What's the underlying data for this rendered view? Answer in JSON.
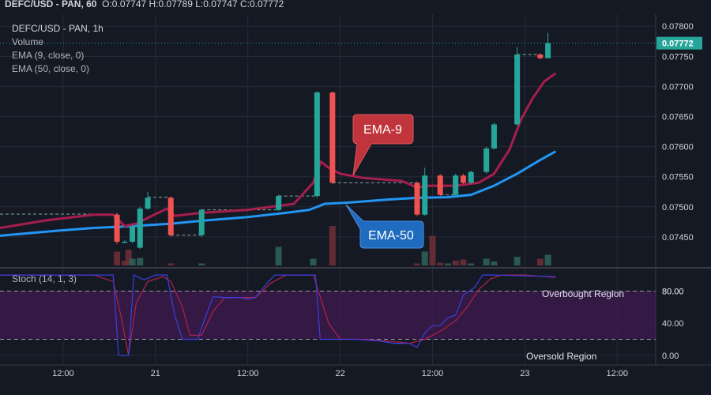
{
  "header": {
    "symbol_line": "DEFC/USD - PAN, 60",
    "ohlc": "O:0.07747 H:0.07789 L:0.07747 C:0.07772"
  },
  "legend": {
    "symbol": "DEFC/USD - PAN, 1h",
    "volume": "Volume",
    "ema9": "EMA (9, close, 0)",
    "ema50": "EMA (50, close, 0)",
    "stoch": "Stoch (14, 1, 3)"
  },
  "annotations": {
    "ema9_label": "EMA-9",
    "ema50_label": "EMA-50",
    "overbought": "Overbought Region",
    "oversold": "Oversold Region"
  },
  "colors": {
    "background": "#151924",
    "up": "#26a69a",
    "down": "#ef5350",
    "ema9": "#a61e4d",
    "ema50": "#2196f3",
    "stoch_k": "#3a3fe0",
    "stoch_d": "#b0214b",
    "band_fill": "#3a1a4a",
    "price_tag": "#26a69a"
  },
  "chart_data": {
    "type": "candlestick",
    "price_axis": {
      "ticks": [
        0.0745,
        0.075,
        0.0755,
        0.076,
        0.0765,
        0.077,
        0.0775,
        0.078
      ],
      "tick_labels": [
        "0.07450",
        "0.07500",
        "0.07550",
        "0.07600",
        "0.07650",
        "0.07700",
        "0.07750",
        "0.07800"
      ],
      "range": [
        0.074,
        0.0782
      ],
      "last_price": 0.07772,
      "last_price_label": "0.07772"
    },
    "time_axis": {
      "labels": [
        {
          "hour": 6,
          "text": "12:00"
        },
        {
          "hour": 18,
          "text": "21"
        },
        {
          "hour": 30,
          "text": "12:00"
        },
        {
          "hour": 42,
          "text": "22"
        },
        {
          "hour": 54,
          "text": "12:00"
        },
        {
          "hour": 66,
          "text": "23"
        },
        {
          "hour": 78,
          "text": "12:00"
        }
      ],
      "range": [
        -2.2,
        83
      ]
    },
    "candles": [
      {
        "h": 13,
        "o": 0.07487,
        "c": 0.07442,
        "hi": 0.0749,
        "lo": 0.07438
      },
      {
        "h": 14,
        "o": 0.07442,
        "c": 0.07442,
        "hi": 0.07445,
        "lo": 0.0744
      },
      {
        "h": 15,
        "o": 0.07442,
        "c": 0.07468,
        "hi": 0.0747,
        "lo": 0.0744
      },
      {
        "h": 16,
        "o": 0.07432,
        "c": 0.07497,
        "hi": 0.075,
        "lo": 0.0743
      },
      {
        "h": 17,
        "o": 0.07497,
        "c": 0.07515,
        "hi": 0.07525,
        "lo": 0.07495
      },
      {
        "h": 20,
        "o": 0.07515,
        "c": 0.07453,
        "hi": 0.07517,
        "lo": 0.0745
      },
      {
        "h": 24,
        "o": 0.07453,
        "c": 0.07495,
        "hi": 0.07497,
        "lo": 0.0745
      },
      {
        "h": 34,
        "o": 0.07495,
        "c": 0.07518,
        "hi": 0.0752,
        "lo": 0.07493
      },
      {
        "h": 39,
        "o": 0.07518,
        "c": 0.0769,
        "hi": 0.07692,
        "lo": 0.07515
      },
      {
        "h": 41,
        "o": 0.0769,
        "c": 0.0754,
        "hi": 0.07692,
        "lo": 0.07538
      },
      {
        "h": 52,
        "o": 0.0754,
        "c": 0.07487,
        "hi": 0.07542,
        "lo": 0.07485
      },
      {
        "h": 53,
        "o": 0.07487,
        "c": 0.07552,
        "hi": 0.07565,
        "lo": 0.07485
      },
      {
        "h": 55,
        "o": 0.07552,
        "c": 0.0752,
        "hi": 0.07555,
        "lo": 0.07518
      },
      {
        "h": 57,
        "o": 0.0752,
        "c": 0.07552,
        "hi": 0.07555,
        "lo": 0.07518
      },
      {
        "h": 58,
        "o": 0.07552,
        "c": 0.0754,
        "hi": 0.07555,
        "lo": 0.07538
      },
      {
        "h": 59,
        "o": 0.0754,
        "c": 0.07558,
        "hi": 0.0756,
        "lo": 0.07538
      },
      {
        "h": 61,
        "o": 0.07558,
        "c": 0.07597,
        "hi": 0.076,
        "lo": 0.07555
      },
      {
        "h": 62,
        "o": 0.07597,
        "c": 0.07637,
        "hi": 0.0764,
        "lo": 0.07595
      },
      {
        "h": 65,
        "o": 0.07637,
        "c": 0.07753,
        "hi": 0.07765,
        "lo": 0.07635
      },
      {
        "h": 68,
        "o": 0.07753,
        "c": 0.07747,
        "hi": 0.07755,
        "lo": 0.07745
      },
      {
        "h": 69,
        "o": 0.07747,
        "c": 0.07772,
        "hi": 0.07789,
        "lo": 0.07747
      }
    ],
    "flat_segments": [
      {
        "from": -2.2,
        "to": 13,
        "price": 0.07488
      },
      {
        "from": 17,
        "to": 20,
        "price": 0.07516
      },
      {
        "from": 20,
        "to": 24,
        "price": 0.07453
      },
      {
        "from": 24,
        "to": 34,
        "price": 0.07495
      },
      {
        "from": 34,
        "to": 39,
        "price": 0.07518
      },
      {
        "from": 41,
        "to": 52,
        "price": 0.0754
      },
      {
        "from": 55,
        "to": 57,
        "price": 0.0752
      },
      {
        "from": 65,
        "to": 68,
        "price": 0.07753
      }
    ],
    "ema9": [
      [
        -2.2,
        0.07465
      ],
      [
        4,
        0.07478
      ],
      [
        10,
        0.07487
      ],
      [
        12.5,
        0.07487
      ],
      [
        14,
        0.07468
      ],
      [
        15.5,
        0.07472
      ],
      [
        18,
        0.07488
      ],
      [
        19.5,
        0.07497
      ],
      [
        20.5,
        0.07485
      ],
      [
        24,
        0.0749
      ],
      [
        30,
        0.07495
      ],
      [
        36,
        0.07505
      ],
      [
        38.5,
        0.0754
      ],
      [
        39.5,
        0.07575
      ],
      [
        40.5,
        0.07565
      ],
      [
        42,
        0.07555
      ],
      [
        45,
        0.07548
      ],
      [
        50,
        0.07543
      ],
      [
        52,
        0.07532
      ],
      [
        53.5,
        0.07535
      ],
      [
        57,
        0.07535
      ],
      [
        60,
        0.0754
      ],
      [
        62,
        0.07555
      ],
      [
        64,
        0.07595
      ],
      [
        65.5,
        0.07645
      ],
      [
        67,
        0.0768
      ],
      [
        68.5,
        0.07708
      ],
      [
        70,
        0.07722
      ]
    ],
    "ema50": [
      [
        -2.2,
        0.07452
      ],
      [
        5,
        0.0746
      ],
      [
        10,
        0.07465
      ],
      [
        15,
        0.07468
      ],
      [
        20,
        0.07472
      ],
      [
        25,
        0.07478
      ],
      [
        30,
        0.07483
      ],
      [
        35,
        0.0749
      ],
      [
        38,
        0.07495
      ],
      [
        40,
        0.07505
      ],
      [
        43,
        0.07507
      ],
      [
        48,
        0.07512
      ],
      [
        52,
        0.07515
      ],
      [
        56,
        0.07516
      ],
      [
        59,
        0.0752
      ],
      [
        62,
        0.07535
      ],
      [
        65,
        0.07555
      ],
      [
        68,
        0.07578
      ],
      [
        70,
        0.07592
      ]
    ],
    "volume": [
      {
        "h": 13,
        "v": 0.35,
        "dir": "down"
      },
      {
        "h": 14,
        "v": 0.12,
        "dir": "down"
      },
      {
        "h": 14.5,
        "v": 0.4,
        "dir": "down"
      },
      {
        "h": 15,
        "v": 0.17,
        "dir": "up"
      },
      {
        "h": 16,
        "v": 0.19,
        "dir": "up"
      },
      {
        "h": 20,
        "v": 0.05,
        "dir": "down"
      },
      {
        "h": 24,
        "v": 0.05,
        "dir": "up"
      },
      {
        "h": 34,
        "v": 0.47,
        "dir": "up"
      },
      {
        "h": 38.5,
        "v": 0.17,
        "dir": "up"
      },
      {
        "h": 41,
        "v": 1.0,
        "dir": "down"
      },
      {
        "h": 52,
        "v": 0.05,
        "dir": "down"
      },
      {
        "h": 53,
        "v": 0.35,
        "dir": "up"
      },
      {
        "h": 54,
        "v": 0.75,
        "dir": "down"
      },
      {
        "h": 55,
        "v": 0.07,
        "dir": "down"
      },
      {
        "h": 56,
        "v": 0.05,
        "dir": "up"
      },
      {
        "h": 57,
        "v": 0.12,
        "dir": "down"
      },
      {
        "h": 58,
        "v": 0.15,
        "dir": "down"
      },
      {
        "h": 59,
        "v": 0.05,
        "dir": "up"
      },
      {
        "h": 61,
        "v": 0.17,
        "dir": "up"
      },
      {
        "h": 62,
        "v": 0.1,
        "dir": "up"
      },
      {
        "h": 65,
        "v": 0.22,
        "dir": "up"
      },
      {
        "h": 68,
        "v": 0.17,
        "dir": "down"
      },
      {
        "h": 69,
        "v": 0.27,
        "dir": "up"
      }
    ],
    "stoch": {
      "ticks": [
        0,
        40,
        80
      ],
      "tick_labels": [
        "0.00",
        "40.00",
        "80.00"
      ],
      "range": [
        -12,
        108
      ],
      "overbought": 80,
      "oversold": 20,
      "k": [
        [
          -2.2,
          100
        ],
        [
          10,
          100
        ],
        [
          12.5,
          100
        ],
        [
          13.2,
          0
        ],
        [
          14.5,
          0
        ],
        [
          15.2,
          100
        ],
        [
          16.5,
          94
        ],
        [
          18,
          100
        ],
        [
          19.5,
          100
        ],
        [
          20.5,
          50
        ],
        [
          21.5,
          20
        ],
        [
          22.5,
          20
        ],
        [
          23.5,
          20
        ],
        [
          24.5,
          48
        ],
        [
          25.5,
          73
        ],
        [
          27,
          72
        ],
        [
          29,
          72
        ],
        [
          30,
          70
        ],
        [
          31,
          72
        ],
        [
          32.5,
          90
        ],
        [
          33.5,
          100
        ],
        [
          38,
          100
        ],
        [
          38.8,
          100
        ],
        [
          39.4,
          20
        ],
        [
          40.5,
          20
        ],
        [
          44,
          20
        ],
        [
          47,
          18
        ],
        [
          49,
          15
        ],
        [
          51,
          15
        ],
        [
          52,
          10
        ],
        [
          53,
          28
        ],
        [
          54,
          37
        ],
        [
          55,
          37
        ],
        [
          56,
          47
        ],
        [
          57,
          50
        ],
        [
          58,
          75
        ],
        [
          59.5,
          85
        ],
        [
          60.5,
          100
        ],
        [
          62,
          100
        ],
        [
          70,
          98
        ]
      ],
      "d": [
        [
          -2.2,
          100
        ],
        [
          10,
          100
        ],
        [
          12.5,
          92
        ],
        [
          13.5,
          50
        ],
        [
          14.5,
          0
        ],
        [
          15.5,
          65
        ],
        [
          17,
          92
        ],
        [
          19,
          98
        ],
        [
          20,
          92
        ],
        [
          21.5,
          60
        ],
        [
          22.5,
          25
        ],
        [
          24,
          25
        ],
        [
          25.5,
          55
        ],
        [
          27,
          72
        ],
        [
          29,
          72
        ],
        [
          31,
          72
        ],
        [
          33,
          90
        ],
        [
          35,
          100
        ],
        [
          38.5,
          100
        ],
        [
          40.5,
          40
        ],
        [
          42,
          20
        ],
        [
          45,
          20
        ],
        [
          48,
          18
        ],
        [
          51,
          15
        ],
        [
          53,
          20
        ],
        [
          55,
          30
        ],
        [
          57,
          43
        ],
        [
          58.5,
          60
        ],
        [
          60,
          82
        ],
        [
          61.5,
          95
        ],
        [
          63,
          100
        ],
        [
          66,
          100
        ],
        [
          70,
          97
        ]
      ]
    }
  }
}
